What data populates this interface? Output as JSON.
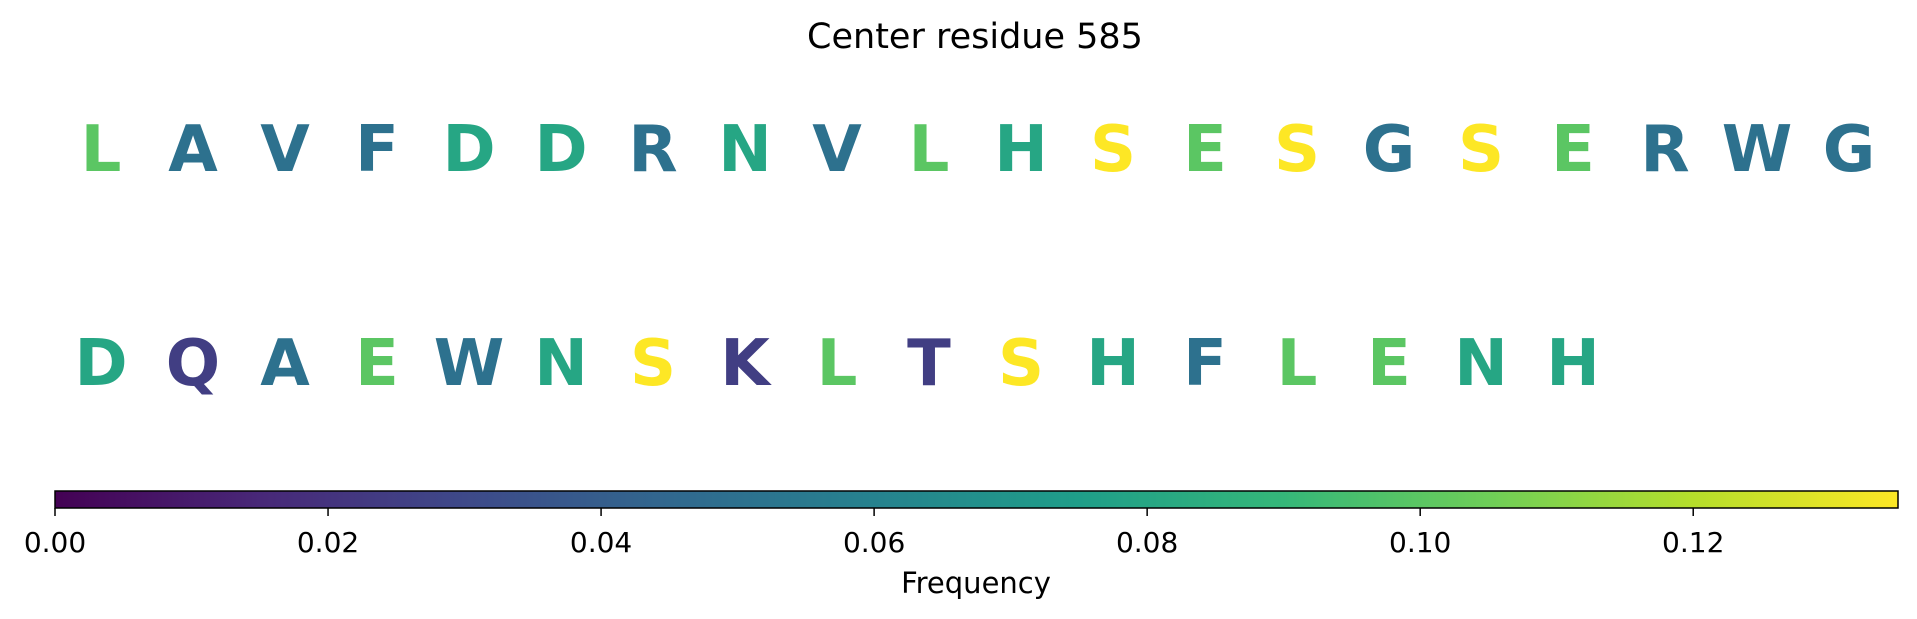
{
  "chart_data": {
    "type": "sequence-logo",
    "title": "Center residue 585",
    "rows": [
      {
        "letters": [
          "L",
          "A",
          "V",
          "F",
          "D",
          "D",
          "R",
          "N",
          "V",
          "L",
          "H",
          "S",
          "E",
          "S",
          "G",
          "S",
          "E",
          "R",
          "W",
          "G"
        ],
        "values": [
          0.1,
          0.05,
          0.05,
          0.05,
          0.08,
          0.08,
          0.05,
          0.08,
          0.05,
          0.1,
          0.08,
          0.135,
          0.1,
          0.135,
          0.05,
          0.135,
          0.1,
          0.05,
          0.05,
          0.05
        ]
      },
      {
        "letters": [
          "D",
          "Q",
          "A",
          "E",
          "W",
          "N",
          "S",
          "K",
          "L",
          "T",
          "S",
          "H",
          "F",
          "L",
          "E",
          "N",
          "H"
        ],
        "values": [
          0.08,
          0.025,
          0.05,
          0.1,
          0.05,
          0.08,
          0.135,
          0.025,
          0.1,
          0.025,
          0.135,
          0.08,
          0.05,
          0.1,
          0.1,
          0.08,
          0.08
        ]
      }
    ],
    "colorbar": {
      "colormap": "viridis",
      "range": [
        0,
        0.135
      ],
      "ticks": [
        0.0,
        0.02,
        0.04,
        0.06,
        0.08,
        0.1,
        0.12
      ],
      "tick_labels": [
        "0.00",
        "0.02",
        "0.04",
        "0.06",
        "0.08",
        "0.10",
        "0.12"
      ],
      "label": "Frequency"
    }
  }
}
